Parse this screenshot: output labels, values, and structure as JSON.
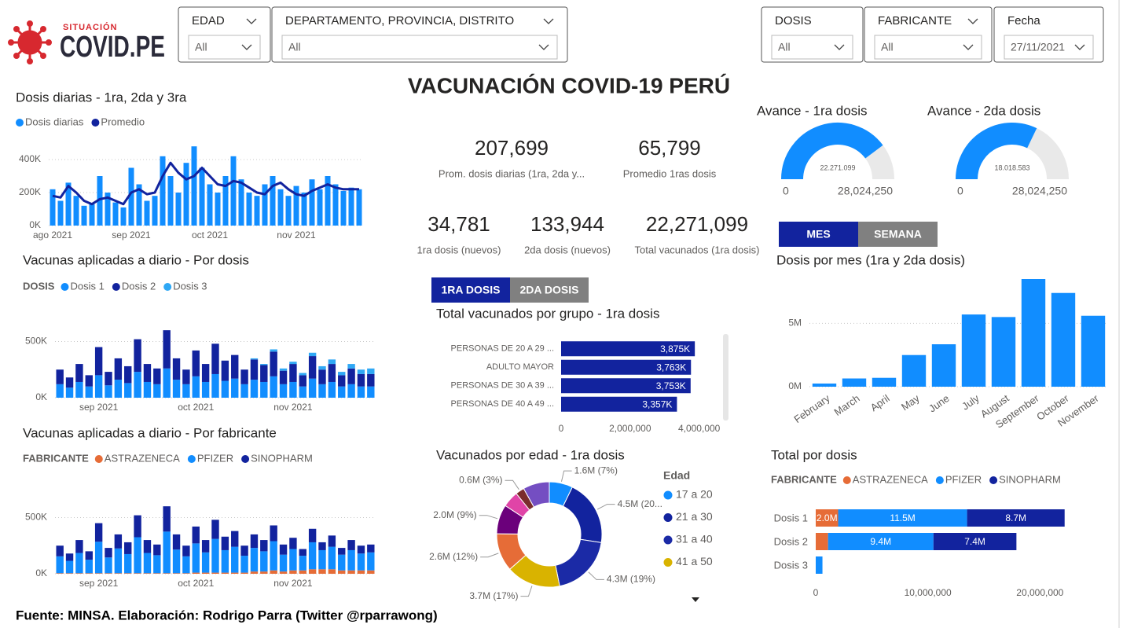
{
  "header": {
    "logo_top": "SITUACIÓN",
    "logo_main": "COVID.PE",
    "title": "VACUNACIÓN COVID-19 PERÚ"
  },
  "filters": [
    {
      "label": "EDAD",
      "value": "All"
    },
    {
      "label": "DEPARTAMENTO, PROVINCIA, DISTRITO",
      "value": "All"
    },
    {
      "label": "DOSIS",
      "value": "All"
    },
    {
      "label": "FABRICANTE",
      "value": "All"
    },
    {
      "label": "Fecha",
      "value": "27/11/2021"
    }
  ],
  "kpis": [
    {
      "value": "207,699",
      "label": "Prom. dosis diarias (1ra, 2da y..."
    },
    {
      "value": "65,799",
      "label": "Promedio 1ras dosis"
    },
    {
      "value": "34,781",
      "label": "1ra dosis (nuevos)"
    },
    {
      "value": "133,944",
      "label": "2da dosis (nuevos)"
    },
    {
      "value": "22,271,099",
      "label": "Total vacunados (1ra dosis)"
    }
  ],
  "buttons": {
    "period": [
      "MES",
      "SEMANA"
    ],
    "dose": [
      "1RA DOSIS",
      "2DA DOSIS"
    ]
  },
  "footer": "Fuente: MINSA. Elaboración: Rodrigo Parra (Twitter @rparrawong)",
  "chart_data": [
    {
      "type": "combo",
      "title": "Dosis diarias - 1ra, 2da y 3ra",
      "grid": true,
      "categories": [
        "ago 2021",
        null,
        null,
        null,
        null,
        null,
        null,
        null,
        null,
        null,
        "sep 2021",
        null,
        null,
        null,
        null,
        null,
        null,
        null,
        null,
        null,
        "oct 2021",
        null,
        null,
        null,
        null,
        null,
        null,
        null,
        null,
        null,
        null,
        "nov 2021",
        null,
        null,
        null,
        null,
        null,
        null,
        null,
        null
      ],
      "series": [
        {
          "name": "Dosis diarias",
          "color": "#118dff",
          "kind": "bar",
          "values": [
            220000,
            150000,
            260000,
            180000,
            120000,
            130000,
            300000,
            200000,
            140000,
            110000,
            350000,
            250000,
            150000,
            180000,
            420000,
            300000,
            200000,
            380000,
            480000,
            350000,
            250000,
            200000,
            300000,
            420000,
            280000,
            200000,
            180000,
            250000,
            300000,
            220000,
            180000,
            240000,
            200000,
            280000,
            220000,
            300000,
            250000,
            210000,
            230000,
            220000
          ]
        },
        {
          "name": "Promedio",
          "color": "#12239e",
          "kind": "line",
          "values": [
            180000,
            170000,
            240000,
            200000,
            150000,
            130000,
            160000,
            170000,
            150000,
            130000,
            200000,
            220000,
            190000,
            200000,
            300000,
            380000,
            320000,
            280000,
            300000,
            350000,
            300000,
            250000,
            240000,
            270000,
            260000,
            230000,
            200000,
            190000,
            240000,
            260000,
            220000,
            190000,
            180000,
            210000,
            230000,
            250000,
            230000,
            220000,
            220000,
            220000
          ]
        }
      ],
      "ylim": [
        0,
        500000
      ],
      "yticks": [
        {
          "value": 0,
          "label": "0K"
        },
        {
          "value": 200000,
          "label": "200K"
        },
        {
          "value": 400000,
          "label": "400K"
        }
      ]
    },
    {
      "type": "stacked_bar",
      "title": "Vacunas aplicadas a diario - Por dosis",
      "legend_title": "DOSIS",
      "grid": true,
      "categories": [
        null,
        null,
        null,
        null,
        "sep 2021",
        null,
        null,
        null,
        null,
        null,
        null,
        null,
        null,
        null,
        "oct 2021",
        null,
        null,
        null,
        null,
        null,
        null,
        null,
        null,
        null,
        "nov 2021",
        null,
        null,
        null,
        null,
        null,
        null,
        null,
        null
      ],
      "series": [
        {
          "name": "Dosis 1",
          "color": "#118dff",
          "values": [
            120000,
            90000,
            140000,
            100000,
            200000,
            110000,
            160000,
            130000,
            230000,
            140000,
            120000,
            260000,
            160000,
            120000,
            190000,
            140000,
            210000,
            150000,
            170000,
            120000,
            160000,
            140000,
            190000,
            120000,
            140000,
            100000,
            170000,
            120000,
            140000,
            100000,
            120000,
            100000,
            100000
          ]
        },
        {
          "name": "Dosis 2",
          "color": "#12239e",
          "values": [
            130000,
            90000,
            160000,
            100000,
            250000,
            120000,
            190000,
            150000,
            290000,
            160000,
            140000,
            340000,
            190000,
            130000,
            230000,
            160000,
            270000,
            180000,
            210000,
            130000,
            180000,
            150000,
            220000,
            120000,
            160000,
            100000,
            200000,
            130000,
            160000,
            100000,
            140000,
            110000,
            110000
          ]
        },
        {
          "name": "Dosis 3",
          "color": "#2fa8f5",
          "values": [
            0,
            0,
            0,
            0,
            0,
            0,
            0,
            0,
            0,
            0,
            0,
            0,
            0,
            0,
            0,
            0,
            0,
            0,
            0,
            0,
            10000,
            10000,
            20000,
            20000,
            20000,
            20000,
            30000,
            30000,
            40000,
            30000,
            40000,
            40000,
            50000
          ]
        }
      ],
      "ylim": [
        0,
        650000
      ],
      "yticks": [
        {
          "value": 0,
          "label": "0K"
        },
        {
          "value": 500000,
          "label": "500K"
        }
      ]
    },
    {
      "type": "stacked_bar",
      "title": "Vacunas aplicadas a diario - Por fabricante",
      "legend_title": "FABRICANTE",
      "grid": true,
      "categories": [
        null,
        null,
        null,
        null,
        "sep 2021",
        null,
        null,
        null,
        null,
        null,
        null,
        null,
        null,
        null,
        "oct 2021",
        null,
        null,
        null,
        null,
        null,
        null,
        null,
        null,
        null,
        "nov 2021",
        null,
        null,
        null,
        null,
        null,
        null,
        null,
        null
      ],
      "series": [
        {
          "name": "ASTRAZENECA",
          "color": "#e66c37",
          "values": [
            5000,
            5000,
            5000,
            5000,
            5000,
            5000,
            5000,
            5000,
            5000,
            5000,
            5000,
            5000,
            5000,
            5000,
            10000,
            10000,
            10000,
            10000,
            10000,
            10000,
            20000,
            20000,
            30000,
            20000,
            30000,
            30000,
            40000,
            40000,
            40000,
            30000,
            30000,
            30000,
            30000
          ]
        },
        {
          "name": "PFIZER",
          "color": "#118dff",
          "values": [
            150000,
            110000,
            180000,
            120000,
            280000,
            140000,
            220000,
            170000,
            320000,
            180000,
            160000,
            370000,
            210000,
            150000,
            260000,
            180000,
            300000,
            200000,
            230000,
            150000,
            210000,
            180000,
            260000,
            150000,
            190000,
            130000,
            240000,
            170000,
            200000,
            140000,
            180000,
            150000,
            160000
          ]
        },
        {
          "name": "SINOPHARM",
          "color": "#12239e",
          "values": [
            95000,
            65000,
            115000,
            75000,
            165000,
            85000,
            125000,
            105000,
            195000,
            115000,
            95000,
            225000,
            135000,
            95000,
            150000,
            110000,
            170000,
            120000,
            140000,
            90000,
            120000,
            100000,
            140000,
            90000,
            100000,
            60000,
            120000,
            70000,
            100000,
            60000,
            90000,
            70000,
            70000
          ]
        }
      ],
      "ylim": [
        0,
        650000
      ],
      "yticks": [
        {
          "value": 0,
          "label": "0K"
        },
        {
          "value": 500000,
          "label": "500K"
        }
      ]
    },
    {
      "type": "gauge",
      "title": "Avance - 1ra dosis",
      "value": 22271099,
      "value_label": "22.271.099",
      "color": "#118dff",
      "ticks": [
        0,
        {
          "value": 28024250,
          "label": "28,024,250"
        }
      ]
    },
    {
      "type": "gauge",
      "title": "Avance - 2da dosis",
      "value": 18018583,
      "value_label": "18.018.583",
      "color": "#118dff",
      "ticks": [
        0,
        {
          "value": 28024250,
          "label": "28,024,250"
        }
      ]
    },
    {
      "type": "hbar",
      "title": "Total vacunados por grupo - 1ra dosis",
      "color": "#12239e",
      "categories": [
        "PERSONAS DE 20 A 29 ...",
        "ADULTO MAYOR",
        "PERSONAS DE 30 A 39 ...",
        "PERSONAS DE 40 A 49 ..."
      ],
      "values": [
        3875000,
        3763000,
        3753000,
        3357000
      ],
      "value_labels": [
        "3,875K",
        "3,763K",
        "3,753K",
        "3,357K"
      ],
      "xlim": [
        0,
        4600000
      ],
      "xticks": [
        0,
        {
          "value": 2000000,
          "label": "2,000,000"
        },
        {
          "value": 4000000,
          "label": "4,000,000"
        }
      ]
    },
    {
      "type": "bar",
      "title": "Dosis por mes (1ra y 2da dosis)",
      "color": "#118dff",
      "grid": true,
      "categories": [
        "February",
        "March",
        "April",
        "May",
        "June",
        "July",
        "August",
        "September",
        "October",
        "November"
      ],
      "values": [
        250000,
        650000,
        700000,
        2500000,
        3350000,
        5700000,
        5500000,
        8500000,
        7400000,
        5600000
      ],
      "ylim": [
        0,
        8500000
      ],
      "yticks": [
        {
          "value": 0,
          "label": "0M"
        },
        {
          "value": 5000000,
          "label": "5M"
        }
      ]
    },
    {
      "type": "donut",
      "title": "Vacunados por edad - 1ra dosis",
      "legend_title": "Edad",
      "categories": [
        "17 a 20",
        "21 a 30",
        "31 a 40",
        "41 a 50",
        null,
        null,
        null,
        null,
        null
      ],
      "values": [
        1600000,
        4500000,
        4300000,
        3700000,
        2600000,
        2000000,
        1100000,
        600000,
        1800000
      ],
      "value_labels": [
        "1.6M (7%)",
        "4.5M (20...",
        "4.3M (19%)",
        "3.7M (17%)",
        "2.6M (12%)",
        "2.0M (9%)",
        null,
        "0.6M (3%)",
        null
      ],
      "colors": [
        "#118dff",
        "#12239e",
        "#1b2aa6",
        "#d9b300",
        "#e66c37",
        "#6b007b",
        "#e044a7",
        "#7a2c2c",
        "#744ec2"
      ]
    },
    {
      "type": "stacked_hbar",
      "title": "Total por dosis",
      "legend_title": "FABRICANTE",
      "categories": [
        "Dosis 1",
        "Dosis 2",
        "Dosis 3"
      ],
      "series": [
        {
          "name": "ASTRAZENECA",
          "color": "#e66c37",
          "values": [
            2000000,
            1100000,
            0
          ],
          "value_labels": [
            "2.0M",
            null,
            null
          ]
        },
        {
          "name": "PFIZER",
          "color": "#118dff",
          "values": [
            11500000,
            9400000,
            600000
          ],
          "value_labels": [
            "11.5M",
            "9.4M",
            null
          ]
        },
        {
          "name": "SINOPHARM",
          "color": "#12239e",
          "values": [
            8700000,
            7400000,
            0
          ],
          "value_labels": [
            "8.7M",
            "7.4M",
            null
          ]
        }
      ],
      "xlim": [
        0,
        22500000
      ],
      "xticks": [
        0,
        {
          "value": 10000000,
          "label": "10,000,000"
        },
        {
          "value": 20000000,
          "label": "20,000,000"
        }
      ]
    }
  ]
}
